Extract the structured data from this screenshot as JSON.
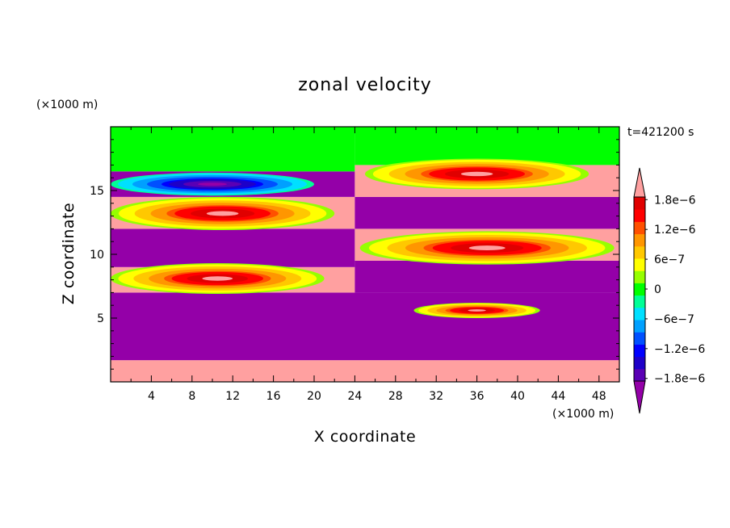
{
  "chart_data": {
    "type": "heatmap",
    "title": "zonal velocity",
    "xlabel": "X coordinate",
    "ylabel": "Z coordinate",
    "x_unit": "(×1000 m)",
    "y_unit": "(×1000 m)",
    "time_label": "t=421200 s",
    "xlim": [
      0,
      50
    ],
    "ylim": [
      0,
      20
    ],
    "x_ticks": [
      4,
      8,
      12,
      16,
      20,
      24,
      28,
      32,
      36,
      40,
      44,
      48
    ],
    "y_ticks": [
      5,
      10,
      15
    ],
    "colorbar": {
      "min": -2.1e-06,
      "max": 2.1e-06,
      "extend": "both",
      "ticks": [
        {
          "value": 1.8e-06,
          "label": "1.8e−6"
        },
        {
          "value": 1.2e-06,
          "label": "1.2e−6"
        },
        {
          "value": 6e-07,
          "label": "6e−7"
        },
        {
          "value": 0,
          "label": "0"
        },
        {
          "value": -6e-07,
          "label": "−6e−7"
        },
        {
          "value": -1.2e-06,
          "label": "−1.2e−6"
        },
        {
          "value": -1.8e-06,
          "label": "−1.8e−6"
        }
      ],
      "colors": [
        "#9400a8",
        "#5a00b4",
        "#1e00c8",
        "#0000ff",
        "#0050ff",
        "#00a0ff",
        "#00e0ff",
        "#00ff96",
        "#00ff00",
        "#96ff00",
        "#ffff00",
        "#ffc800",
        "#ff9600",
        "#ff5000",
        "#ff0000",
        "#e00000",
        "#ffa0a0"
      ]
    },
    "cells": [
      {
        "x": [
          0,
          50
        ],
        "z": [
          0,
          1.7
        ],
        "value": 2.1e-06
      },
      {
        "x": [
          0,
          50
        ],
        "z": [
          1.7,
          7
        ],
        "value": -2.1e-06
      },
      {
        "x": [
          0,
          24
        ],
        "z": [
          7,
          9
        ],
        "value": 2.1e-06
      },
      {
        "x": [
          0,
          24
        ],
        "z": [
          9,
          12
        ],
        "value": -2.1e-06
      },
      {
        "x": [
          0,
          24
        ],
        "z": [
          12,
          14.5
        ],
        "value": 2.1e-06
      },
      {
        "x": [
          0,
          24
        ],
        "z": [
          14.5,
          16.5
        ],
        "value": -2.1e-06
      },
      {
        "x": [
          0,
          24
        ],
        "z": [
          16.5,
          20
        ],
        "value": 0
      },
      {
        "x": [
          24,
          50
        ],
        "z": [
          7,
          9.5
        ],
        "value": -2.1e-06
      },
      {
        "x": [
          24,
          50
        ],
        "z": [
          9.5,
          12
        ],
        "value": 2.1e-06
      },
      {
        "x": [
          24,
          50
        ],
        "z": [
          12,
          14.5
        ],
        "value": -2.1e-06
      },
      {
        "x": [
          24,
          50
        ],
        "z": [
          14.5,
          17
        ],
        "value": 2.1e-06
      },
      {
        "x": [
          24,
          50
        ],
        "z": [
          17,
          20
        ],
        "value": 0
      }
    ],
    "vortices": [
      {
        "cx": 10.5,
        "cz": 8.1,
        "rx": 10.5,
        "rz": 1.2,
        "sign": 1
      },
      {
        "cx": 11,
        "cz": 13.2,
        "rx": 11,
        "rz": 1.3,
        "sign": 1
      },
      {
        "cx": 10,
        "cz": 15.5,
        "rx": 10,
        "rz": 0.9,
        "sign": -1
      },
      {
        "cx": 37,
        "cz": 10.5,
        "rx": 12.5,
        "rz": 1.3,
        "sign": 1
      },
      {
        "cx": 36,
        "cz": 16.3,
        "rx": 11,
        "rz": 1.2,
        "sign": 1
      },
      {
        "cx": 36,
        "cz": 5.6,
        "rx": 6.2,
        "rz": 0.6,
        "sign": 1
      }
    ]
  }
}
